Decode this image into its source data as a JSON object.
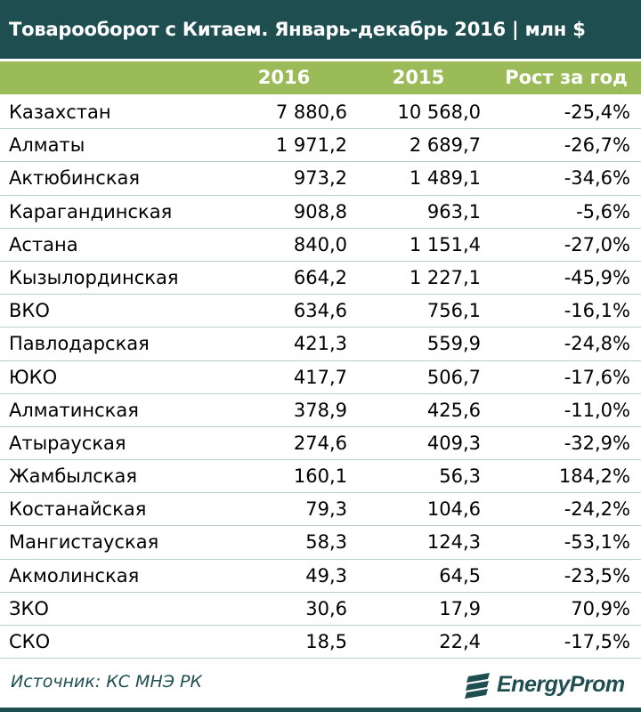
{
  "title": "Товарооборот с Китаем. Январь-декабрь 2016 | млн $",
  "colors": {
    "header_dark": "#1f4e51",
    "header_green": "#9bbb59",
    "row_border": "#b9cfce"
  },
  "chart_data": {
    "type": "table",
    "columns": [
      "2016",
      "2015",
      "Рост за год"
    ],
    "rows": [
      {
        "region": "Казахстан",
        "y2016": "7 880,6",
        "y2015": "10 568,0",
        "growth": "-25,4%"
      },
      {
        "region": "Алматы",
        "y2016": "1 971,2",
        "y2015": "2 689,7",
        "growth": "-26,7%"
      },
      {
        "region": "Актюбинская",
        "y2016": "973,2",
        "y2015": "1 489,1",
        "growth": "-34,6%"
      },
      {
        "region": "Карагандинская",
        "y2016": "908,8",
        "y2015": "963,1",
        "growth": "-5,6%"
      },
      {
        "region": "Астана",
        "y2016": "840,0",
        "y2015": "1 151,4",
        "growth": "-27,0%"
      },
      {
        "region": "Кызылординская",
        "y2016": "664,2",
        "y2015": "1 227,1",
        "growth": "-45,9%"
      },
      {
        "region": "ВКО",
        "y2016": "634,6",
        "y2015": "756,1",
        "growth": "-16,1%"
      },
      {
        "region": "Павлодарская",
        "y2016": "421,3",
        "y2015": "559,9",
        "growth": "-24,8%"
      },
      {
        "region": "ЮКО",
        "y2016": "417,7",
        "y2015": "506,7",
        "growth": "-17,6%"
      },
      {
        "region": "Алматинская",
        "y2016": "378,9",
        "y2015": "425,6",
        "growth": "-11,0%"
      },
      {
        "region": "Атырауская",
        "y2016": "274,6",
        "y2015": "409,3",
        "growth": "-32,9%"
      },
      {
        "region": "Жамбылская",
        "y2016": "160,1",
        "y2015": "56,3",
        "growth": "184,2%"
      },
      {
        "region": "Костанайская",
        "y2016": "79,3",
        "y2015": "104,6",
        "growth": "-24,2%"
      },
      {
        "region": "Мангистауская",
        "y2016": "58,3",
        "y2015": "124,3",
        "growth": "-53,1%"
      },
      {
        "region": "Акмолинская",
        "y2016": "49,3",
        "y2015": "64,5",
        "growth": "-23,5%"
      },
      {
        "region": "ЗКО",
        "y2016": "30,6",
        "y2015": "17,9",
        "growth": "70,9%"
      },
      {
        "region": "СКО",
        "y2016": "18,5",
        "y2015": "22,4",
        "growth": "-17,5%"
      }
    ]
  },
  "source": "Источник: КС МНЭ РК",
  "logo": {
    "text": "EnergyProm",
    "icon": "energyprom-logo-icon"
  }
}
